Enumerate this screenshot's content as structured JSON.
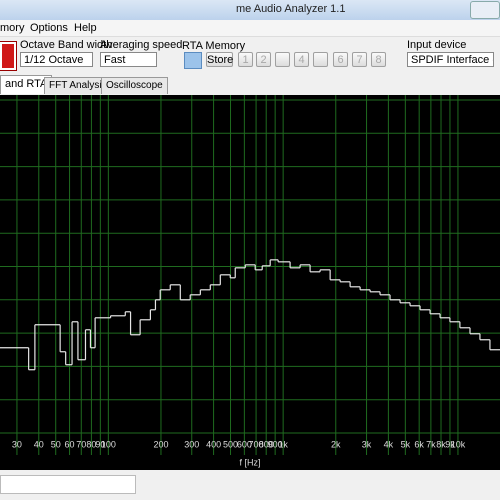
{
  "window": {
    "title": "me Audio Analyzer 1.1"
  },
  "menu": [
    "mory",
    "Options",
    "Help"
  ],
  "toolbar": {
    "octave_label": "Octave Band width",
    "octave_value": "1/12 Octave",
    "avg_label": "Averaging speed",
    "avg_value": "Fast",
    "memory_label": "RTA Memory",
    "store": "Store",
    "memory_slots": [
      "1",
      "2",
      "4",
      "6",
      "7",
      "8"
    ],
    "input_label": "Input device",
    "input_value": "SPDIF Interface (I"
  },
  "tabs": [
    "and RTA",
    "FFT Analysis",
    "Oscilloscope"
  ],
  "chart_data": {
    "type": "step",
    "xlabel": "f [Hz]",
    "log_x": true,
    "grid": true,
    "xlim": [
      24,
      17400
    ],
    "ylim": [
      -100,
      0
    ],
    "xticks": [
      30,
      40,
      50,
      60,
      70,
      80,
      90,
      100,
      200,
      300,
      400,
      500,
      600,
      700,
      800,
      900,
      {
        "value": 1000,
        "label": "1k"
      },
      {
        "value": 2000,
        "label": "2k"
      },
      {
        "value": 3000,
        "label": "3k"
      },
      {
        "value": 4000,
        "label": "4k"
      },
      {
        "value": 5000,
        "label": "5k"
      },
      {
        "value": 6000,
        "label": "6k"
      },
      {
        "value": 7000,
        "label": "7k"
      },
      {
        "value": 8000,
        "label": "8k"
      },
      {
        "value": 9000,
        "label": "9k"
      },
      {
        "value": 10000,
        "label": "10k"
      }
    ],
    "yticks": [
      -100,
      -90,
      -80,
      -70,
      -60,
      -50,
      -40,
      -30,
      -20,
      -10,
      0
    ],
    "color": "#e6e6e6",
    "grid_color": "#1f6b1f",
    "x": [
      24,
      35,
      38,
      53,
      57,
      62,
      67,
      74,
      79,
      84,
      103,
      125,
      134,
      152,
      174,
      186,
      198,
      226,
      258,
      294,
      336,
      383,
      437,
      498,
      532,
      607,
      692,
      759,
      843,
      936,
      1096,
      1250,
      1426,
      1627,
      1857,
      2118,
      2416,
      2756,
      3144,
      3583,
      4087,
      4664,
      5321,
      6070,
      6925,
      7899,
      8995,
      10260,
      11720,
      13360,
      15240
    ],
    "values": [
      -74.4,
      -81,
      -67.5,
      -75.6,
      -79.5,
      -66.6,
      -78,
      -69,
      -74.4,
      -65.4,
      -64.8,
      -63.6,
      -70.5,
      -66,
      -63,
      -60,
      -57,
      -55.5,
      -60,
      -58.5,
      -57,
      -55.5,
      -52.5,
      -53.4,
      -50.4,
      -49.5,
      -51,
      -49.8,
      -48,
      -48.6,
      -50.4,
      -49.5,
      -51.6,
      -51,
      -54,
      -54.6,
      -56.1,
      -57,
      -57.6,
      -58.5,
      -60,
      -60.9,
      -61.8,
      -63,
      -64.2,
      -65.4,
      -66.6,
      -68.4,
      -70.2,
      -72,
      -75
    ]
  }
}
